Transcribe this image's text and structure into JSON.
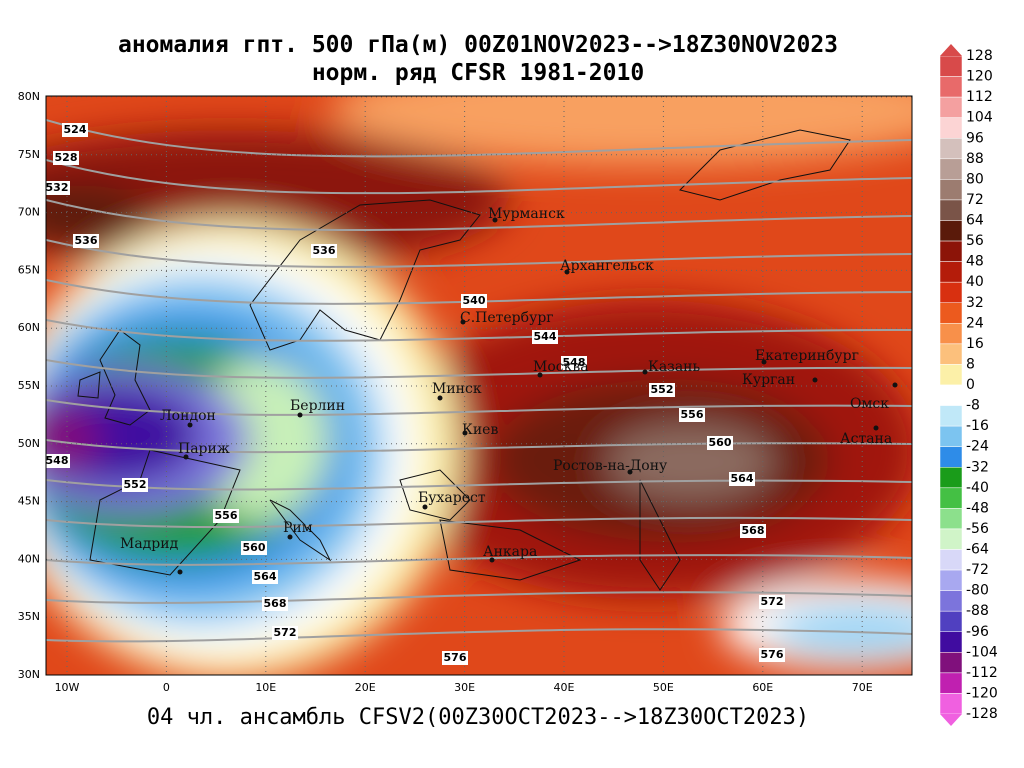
{
  "header": {
    "title": "аномалия гпт. 500 гПа(м) 00Z01NOV2023-->18Z30NOV2023",
    "subtitle": "норм. ряд CFSR 1981-2010"
  },
  "map": {
    "lat_labels": [
      "80N",
      "75N",
      "70N",
      "65N",
      "60N",
      "55N",
      "50N",
      "45N",
      "40N",
      "35N",
      "30N"
    ],
    "lon_labels": [
      "10W",
      "0",
      "10E",
      "20E",
      "30E",
      "40E",
      "50E",
      "60E",
      "70E"
    ],
    "contour_labels": [
      524,
      528,
      532,
      536,
      536,
      540,
      544,
      548,
      548,
      552,
      552,
      556,
      556,
      560,
      560,
      564,
      564,
      568,
      568,
      572,
      572,
      576,
      576
    ],
    "cities": [
      "Мурманск",
      "Архангельск",
      "С.Петербург",
      "Москва",
      "Казань",
      "Екатеринбург",
      "Курган",
      "Омск",
      "Астана",
      "Минск",
      "Берлин",
      "Лондон",
      "Париж",
      "Киев",
      "Ростов-на-Дону",
      "Бухарест",
      "Рим",
      "Мадрид",
      "Анкара"
    ]
  },
  "colorbar": {
    "levels": [
      128,
      120,
      112,
      104,
      96,
      88,
      80,
      72,
      64,
      56,
      48,
      40,
      32,
      24,
      16,
      8,
      0,
      -8,
      -16,
      -24,
      -32,
      -40,
      -48,
      -56,
      -64,
      -72,
      -80,
      -88,
      -96,
      -104,
      -112,
      -120,
      -128
    ],
    "colors": [
      "#d84a4a",
      "#e86a6a",
      "#f4a0a0",
      "#fcd4d4",
      "#d4c0bc",
      "#b89e96",
      "#9c7c70",
      "#7a5448",
      "#5a1a0a",
      "#8c1408",
      "#b41c0a",
      "#d83010",
      "#ec5a1e",
      "#f8904a",
      "#fcc07c",
      "#fcf0a8",
      "#ffffff",
      "#c0e8f8",
      "#7cc4f0",
      "#2e8ce8",
      "#1a9c1a",
      "#44c044",
      "#8ce08c",
      "#d0f4c8",
      "#d8d8f8",
      "#a8a8f0",
      "#7c74dc",
      "#5040c0",
      "#400ca0",
      "#80107c",
      "#c020b0",
      "#f060e0"
    ]
  },
  "footer": "04 чл. ансамбль CFSV2(00Z30OCT2023-->18Z30OCT2023)"
}
